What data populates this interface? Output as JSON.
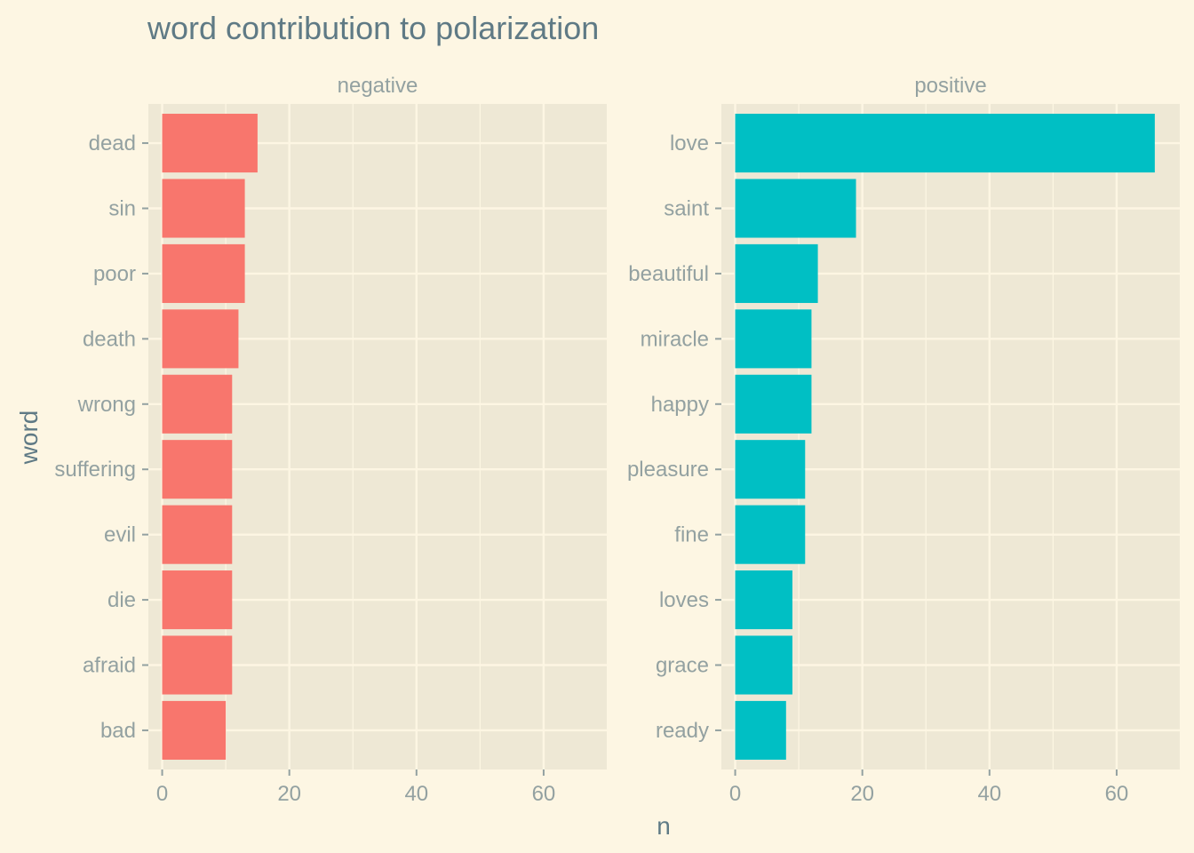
{
  "chart_data": {
    "type": "bar",
    "orientation": "horizontal",
    "title": "word contribution to polarization",
    "xlabel": "n",
    "ylabel": "word",
    "xlim": [
      0,
      69
    ],
    "x_ticks": [
      0,
      20,
      40,
      60
    ],
    "grid": true,
    "legend": "none",
    "panels": [
      {
        "name": "negative",
        "color": "#F8766D",
        "categories": [
          "dead",
          "sin",
          "poor",
          "death",
          "wrong",
          "suffering",
          "evil",
          "die",
          "afraid",
          "bad"
        ],
        "values": [
          15,
          13,
          13,
          12,
          11,
          11,
          11,
          11,
          11,
          10
        ]
      },
      {
        "name": "positive",
        "color": "#00BFC4",
        "categories": [
          "love",
          "saint",
          "beautiful",
          "miracle",
          "happy",
          "pleasure",
          "fine",
          "loves",
          "grace",
          "ready"
        ],
        "values": [
          66,
          19,
          13,
          12,
          12,
          11,
          11,
          9,
          9,
          8
        ]
      }
    ]
  },
  "colors": {
    "background": "#FDF6E3",
    "panel": "#EEE8D5",
    "grid": "#FDF6E3",
    "text": "#93A1A1",
    "title": "#5F7A85"
  }
}
